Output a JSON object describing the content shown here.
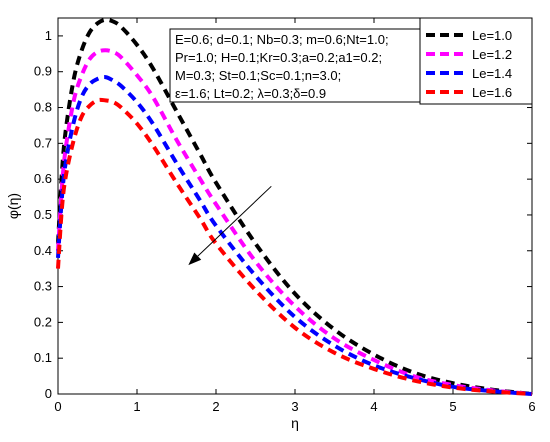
{
  "chart_data": {
    "type": "line",
    "title": "",
    "xlabel": "η",
    "ylabel": "φ(η)",
    "xlim": [
      0,
      6
    ],
    "ylim": [
      0,
      1.05
    ],
    "x_ticks": [
      0,
      1,
      2,
      3,
      4,
      5,
      6
    ],
    "y_ticks": [
      0,
      0.1,
      0.2,
      0.3,
      0.4,
      0.5,
      0.6,
      0.7,
      0.8,
      0.9,
      1
    ],
    "x_tick_labels": [
      "0",
      "1",
      "2",
      "3",
      "4",
      "5",
      "6"
    ],
    "y_tick_labels": [
      "0",
      "0.1",
      "0.2",
      "0.3",
      "0.4",
      "0.5",
      "0.6",
      "0.7",
      "0.8",
      "0.9",
      "1"
    ],
    "grid": false,
    "legend_position": "top-right",
    "line_style": "dashed",
    "series": [
      {
        "name": "Le=1.0",
        "color": "#000000",
        "x": [
          0,
          0.05,
          0.1,
          0.2,
          0.3,
          0.4,
          0.5,
          0.6,
          0.7,
          0.8,
          1.0,
          1.2,
          1.5,
          1.8,
          2.0,
          2.5,
          3.0,
          3.5,
          4.0,
          4.5,
          5.0,
          5.5,
          6.0
        ],
        "y": [
          0.42,
          0.62,
          0.74,
          0.88,
          0.96,
          1.01,
          1.035,
          1.045,
          1.04,
          1.025,
          0.975,
          0.91,
          0.79,
          0.67,
          0.59,
          0.42,
          0.28,
          0.18,
          0.11,
          0.06,
          0.03,
          0.012,
          0.0
        ]
      },
      {
        "name": "Le=1.2",
        "color": "#ff00ff",
        "x": [
          0,
          0.05,
          0.1,
          0.2,
          0.3,
          0.4,
          0.5,
          0.6,
          0.7,
          0.8,
          1.0,
          1.2,
          1.5,
          1.8,
          2.0,
          2.5,
          3.0,
          3.5,
          4.0,
          4.5,
          5.0,
          5.5,
          6.0
        ],
        "y": [
          0.4,
          0.58,
          0.69,
          0.82,
          0.89,
          0.935,
          0.955,
          0.96,
          0.955,
          0.94,
          0.89,
          0.83,
          0.71,
          0.6,
          0.53,
          0.37,
          0.245,
          0.155,
          0.095,
          0.05,
          0.025,
          0.01,
          0.0
        ]
      },
      {
        "name": "Le=1.4",
        "color": "#0000ff",
        "x": [
          0,
          0.05,
          0.1,
          0.2,
          0.3,
          0.4,
          0.5,
          0.6,
          0.7,
          0.8,
          1.0,
          1.2,
          1.5,
          1.8,
          2.0,
          2.5,
          3.0,
          3.5,
          4.0,
          4.5,
          5.0,
          5.5,
          6.0
        ],
        "y": [
          0.38,
          0.55,
          0.65,
          0.76,
          0.83,
          0.865,
          0.88,
          0.885,
          0.875,
          0.86,
          0.815,
          0.755,
          0.645,
          0.54,
          0.47,
          0.33,
          0.215,
          0.135,
          0.08,
          0.045,
          0.02,
          0.008,
          0.0
        ]
      },
      {
        "name": "Le=1.6",
        "color": "#ff0000",
        "x": [
          0,
          0.05,
          0.1,
          0.2,
          0.3,
          0.4,
          0.5,
          0.6,
          0.7,
          0.8,
          1.0,
          1.2,
          1.5,
          1.8,
          2.0,
          2.5,
          3.0,
          3.5,
          4.0,
          4.5,
          5.0,
          5.5,
          6.0
        ],
        "y": [
          0.35,
          0.52,
          0.61,
          0.71,
          0.775,
          0.805,
          0.82,
          0.82,
          0.815,
          0.8,
          0.755,
          0.695,
          0.59,
          0.49,
          0.42,
          0.29,
          0.185,
          0.115,
          0.07,
          0.038,
          0.018,
          0.007,
          0.0
        ]
      }
    ],
    "parameter_box": [
      "E=0.6; d=0.1; Nb=0.3; m=0.6;Nt=1.0;",
      "Pr=1.0; H=0.1;Kr=0.3;a=0.2;a1=0.2;",
      "M=0.3; St=0.1;Sc=0.1;n=3.0;",
      "ε=1.6; Lt=0.2; λ=0.3;δ=0.9"
    ],
    "arrow": {
      "from": [
        2.7,
        0.58
      ],
      "to": [
        1.65,
        0.36
      ]
    }
  }
}
